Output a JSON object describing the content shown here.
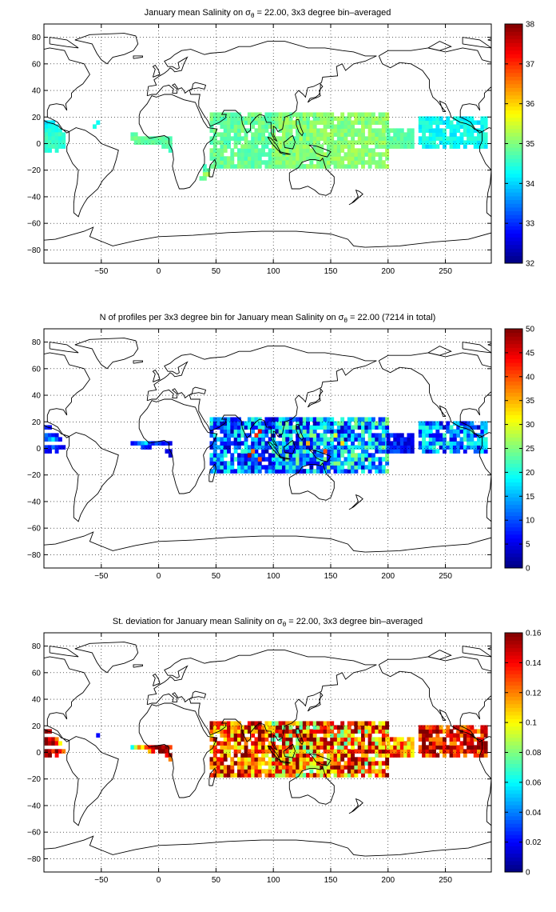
{
  "colors": {
    "colormap": "jet",
    "land_outline": "#000000",
    "grid": "#000000",
    "background": "#ffffff"
  },
  "chart_data": [
    {
      "type": "heatmap",
      "title_prefix": "January mean Salinity on σ",
      "title_sub": "θ",
      "title_suffix": " = 22.00, 3x3 degree bin–averaged",
      "xlim": [
        -100,
        290
      ],
      "ylim": [
        -90,
        90
      ],
      "x_ticks": [
        -50,
        0,
        50,
        100,
        150,
        200,
        250
      ],
      "y_ticks": [
        -80,
        -60,
        -40,
        -20,
        0,
        20,
        40,
        60,
        80
      ],
      "grid": true,
      "clim": [
        32,
        38
      ],
      "colorbar_ticks": [
        32,
        33,
        34,
        35,
        36,
        37,
        38
      ],
      "cells": [
        [
          -98,
          16,
          34
        ],
        [
          -95,
          16,
          34.2
        ],
        [
          -92,
          16,
          34.1
        ],
        [
          -98,
          13,
          34.2
        ],
        [
          -95,
          13,
          34.3
        ],
        [
          -92,
          13,
          34.4
        ],
        [
          -89,
          13,
          34.3
        ],
        [
          -98,
          10,
          34.4
        ],
        [
          -95,
          10,
          34.5
        ],
        [
          -92,
          10,
          34.4
        ],
        [
          -89,
          10,
          34.3
        ],
        [
          -86,
          10,
          34.4
        ],
        [
          -98,
          7,
          34.6
        ],
        [
          -95,
          7,
          34.4
        ],
        [
          -92,
          7,
          34.5
        ],
        [
          -89,
          7,
          34.6
        ],
        [
          -86,
          7,
          34.7
        ],
        [
          -83,
          7,
          34.5
        ],
        [
          -98,
          4,
          34.7
        ],
        [
          -95,
          4,
          34.5
        ],
        [
          -92,
          4,
          34.6
        ],
        [
          -89,
          4,
          34.5
        ],
        [
          -86,
          4,
          34.4
        ],
        [
          -83,
          4,
          34.5
        ],
        [
          -98,
          1,
          34.6
        ],
        [
          -95,
          1,
          34.7
        ],
        [
          -92,
          1,
          34.5
        ],
        [
          -89,
          1,
          34.6
        ],
        [
          -86,
          1,
          34.5
        ],
        [
          -83,
          1,
          34.6
        ],
        [
          -98,
          -2,
          34.5
        ],
        [
          -95,
          -2,
          34.6
        ],
        [
          -92,
          -2,
          34.7
        ],
        [
          -89,
          -2,
          34.6
        ],
        [
          -86,
          -2,
          34.5
        ],
        [
          -83,
          -2,
          34.4
        ],
        [
          -98,
          -5,
          34.5
        ],
        [
          -95,
          -5,
          34.4
        ],
        [
          -89,
          -5,
          34.5
        ],
        [
          -53,
          16,
          34.3
        ],
        [
          -56,
          13,
          34.4
        ],
        [
          -23,
          7,
          34.7
        ],
        [
          -20,
          7,
          34.8
        ],
        [
          -23,
          4,
          34.9
        ],
        [
          -20,
          4,
          35
        ],
        [
          -17,
          4,
          34.9
        ],
        [
          -14,
          4,
          34.8
        ],
        [
          -11,
          4,
          34.9
        ],
        [
          -8,
          4,
          34.8
        ],
        [
          -5,
          4,
          34.7
        ],
        [
          -2,
          4,
          34.8
        ],
        [
          1,
          4,
          34.9
        ],
        [
          4,
          4,
          34.8
        ],
        [
          7,
          4,
          34.7
        ],
        [
          -20,
          1,
          34.8
        ],
        [
          -17,
          1,
          34.9
        ],
        [
          -14,
          1,
          34.8
        ],
        [
          -11,
          1,
          34.7
        ],
        [
          -8,
          1,
          34.8
        ],
        [
          -5,
          1,
          34.9
        ],
        [
          -2,
          1,
          34.8
        ],
        [
          1,
          1,
          34.7
        ],
        [
          4,
          1,
          34.8
        ],
        [
          7,
          1,
          34.9
        ],
        [
          10,
          1,
          34.8
        ],
        [
          10,
          4,
          34.7
        ],
        [
          7,
          -2,
          34.8
        ],
        [
          10,
          -2,
          34.7
        ],
        [
          10,
          -5,
          34.6
        ],
        [
          4,
          -2,
          34.7
        ],
        [
          40,
          -20,
          34.7
        ],
        [
          43,
          -20,
          34.8
        ],
        [
          40,
          -23,
          35.2
        ],
        [
          43,
          -23,
          35.3
        ],
        [
          40,
          -26,
          34.9
        ],
        [
          37,
          -26,
          34.8
        ],
        [
          40,
          -17,
          34.6
        ]
      ],
      "region_fills": [
        {
          "lon": [
            46,
            130
          ],
          "lat": [
            -17,
            23
          ],
          "base": 34.85,
          "amp": 0.25
        },
        {
          "lon": [
            100,
            200
          ],
          "lat": [
            -17,
            23
          ],
          "base": 35.05,
          "amp": 0.25
        },
        {
          "lon": [
            200,
            221
          ],
          "lat": [
            -2,
            11
          ],
          "base": 34.8,
          "amp": 0.15
        },
        {
          "lon": [
            228,
            287
          ],
          "lat": [
            -2,
            20
          ],
          "base": 34.3,
          "amp": 0.3
        }
      ]
    },
    {
      "type": "heatmap",
      "title_prefix": "N of profiles per 3x3 degree bin for January mean Salinity on σ",
      "title_sub": "θ",
      "title_suffix": " = 22.00 (7214 in total)",
      "xlim": [
        -100,
        290
      ],
      "ylim": [
        -90,
        90
      ],
      "x_ticks": [
        -50,
        0,
        50,
        100,
        150,
        200,
        250
      ],
      "y_ticks": [
        -80,
        -60,
        -40,
        -20,
        0,
        20,
        40,
        60,
        80
      ],
      "grid": true,
      "clim": [
        0,
        50
      ],
      "colorbar_ticks": [
        0,
        5,
        10,
        15,
        20,
        25,
        30,
        35,
        40,
        45,
        50
      ],
      "cells": [
        [
          -98,
          16,
          8
        ],
        [
          -95,
          16,
          6
        ],
        [
          -98,
          10,
          12
        ],
        [
          -95,
          10,
          9
        ],
        [
          -92,
          10,
          7
        ],
        [
          -89,
          10,
          5
        ],
        [
          -98,
          7,
          10
        ],
        [
          -95,
          7,
          14
        ],
        [
          -92,
          7,
          18
        ],
        [
          -89,
          7,
          11
        ],
        [
          -86,
          7,
          6
        ],
        [
          -98,
          1,
          9
        ],
        [
          -95,
          1,
          7
        ],
        [
          -92,
          1,
          12
        ],
        [
          -89,
          1,
          8
        ],
        [
          -86,
          1,
          6
        ],
        [
          -83,
          1,
          5
        ],
        [
          -98,
          -2,
          6
        ],
        [
          -95,
          -2,
          5
        ],
        [
          -89,
          -2,
          7
        ],
        [
          -23,
          4,
          6
        ],
        [
          -20,
          4,
          8
        ],
        [
          -17,
          4,
          12
        ],
        [
          -14,
          4,
          15
        ],
        [
          -11,
          4,
          18
        ],
        [
          -8,
          4,
          10
        ],
        [
          -5,
          4,
          7
        ],
        [
          -2,
          4,
          11
        ],
        [
          1,
          4,
          9
        ],
        [
          4,
          4,
          6
        ],
        [
          7,
          4,
          8
        ],
        [
          10,
          4,
          5
        ],
        [
          -14,
          1,
          9
        ],
        [
          -11,
          1,
          7
        ],
        [
          -8,
          1,
          6
        ],
        [
          7,
          -2,
          5
        ],
        [
          10,
          -2,
          4
        ],
        [
          10,
          -5,
          4
        ],
        [
          85,
          10,
          42
        ],
        [
          88,
          13,
          45
        ],
        [
          82,
          -2,
          38
        ],
        [
          79,
          -5,
          48
        ],
        [
          88,
          -8,
          40
        ],
        [
          130,
          4,
          35
        ],
        [
          145,
          -2,
          40
        ],
        [
          160,
          4,
          33
        ],
        [
          154,
          10,
          30
        ]
      ],
      "region_fills": [
        {
          "lon": [
            46,
            130
          ],
          "lat": [
            -17,
            23
          ],
          "base": 12,
          "amp": 10
        },
        {
          "lon": [
            100,
            200
          ],
          "lat": [
            -17,
            23
          ],
          "base": 14,
          "amp": 12
        },
        {
          "lon": [
            200,
            221
          ],
          "lat": [
            -2,
            11
          ],
          "base": 7,
          "amp": 4
        },
        {
          "lon": [
            228,
            287
          ],
          "lat": [
            -2,
            20
          ],
          "base": 13,
          "amp": 10
        }
      ]
    },
    {
      "type": "heatmap",
      "title_prefix": "St. deviation for January mean Salinity on σ",
      "title_sub": "θ",
      "title_suffix": " = 22.00, 3x3 degree bin–averaged",
      "xlim": [
        -100,
        290
      ],
      "ylim": [
        -90,
        90
      ],
      "x_ticks": [
        -50,
        0,
        50,
        100,
        150,
        200,
        250
      ],
      "y_ticks": [
        -80,
        -60,
        -40,
        -20,
        0,
        20,
        40,
        60,
        80
      ],
      "grid": true,
      "clim": [
        0,
        0.16
      ],
      "colorbar_ticks": [
        0,
        0.02,
        0.04,
        0.06,
        0.08,
        0.1,
        0.12,
        0.14,
        0.16
      ],
      "cells": [
        [
          -98,
          16,
          0.16
        ],
        [
          -95,
          16,
          0.15
        ],
        [
          -98,
          10,
          0.16
        ],
        [
          -95,
          10,
          0.14
        ],
        [
          -92,
          10,
          0.15
        ],
        [
          -89,
          10,
          0.12
        ],
        [
          -98,
          7,
          0.16
        ],
        [
          -95,
          7,
          0.15
        ],
        [
          -92,
          7,
          0.16
        ],
        [
          -89,
          7,
          0.14
        ],
        [
          -86,
          7,
          0.1
        ],
        [
          -98,
          1,
          0.16
        ],
        [
          -95,
          1,
          0.15
        ],
        [
          -92,
          1,
          0.13
        ],
        [
          -89,
          1,
          0.16
        ],
        [
          -86,
          1,
          0.14
        ],
        [
          -83,
          1,
          0.12
        ],
        [
          -98,
          -2,
          0.15
        ],
        [
          -95,
          -2,
          0.16
        ],
        [
          -89,
          -2,
          0.14
        ],
        [
          -53,
          13,
          0.02
        ],
        [
          -23,
          4,
          0.06
        ],
        [
          -20,
          4,
          0.09
        ],
        [
          -17,
          4,
          0.12
        ],
        [
          -14,
          4,
          0.1
        ],
        [
          -11,
          4,
          0.13
        ],
        [
          -8,
          4,
          0.14
        ],
        [
          -5,
          4,
          0.15
        ],
        [
          -2,
          4,
          0.16
        ],
        [
          1,
          4,
          0.16
        ],
        [
          4,
          4,
          0.15
        ],
        [
          7,
          4,
          0.16
        ],
        [
          10,
          4,
          0.13
        ],
        [
          -8,
          1,
          0.11
        ],
        [
          -5,
          1,
          0.14
        ],
        [
          1,
          1,
          0.16
        ],
        [
          4,
          1,
          0.16
        ],
        [
          7,
          1,
          0.15
        ],
        [
          7,
          -2,
          0.14
        ],
        [
          10,
          -2,
          0.16
        ],
        [
          10,
          -5,
          0.12
        ]
      ],
      "region_fills": [
        {
          "lon": [
            46,
            130
          ],
          "lat": [
            -17,
            23
          ],
          "base": 0.13,
          "amp": 0.04
        },
        {
          "lon": [
            100,
            200
          ],
          "lat": [
            -17,
            23
          ],
          "base": 0.12,
          "amp": 0.05
        },
        {
          "lon": [
            200,
            221
          ],
          "lat": [
            -2,
            11
          ],
          "base": 0.12,
          "amp": 0.03
        },
        {
          "lon": [
            228,
            287
          ],
          "lat": [
            -2,
            20
          ],
          "base": 0.14,
          "amp": 0.03
        }
      ]
    }
  ]
}
